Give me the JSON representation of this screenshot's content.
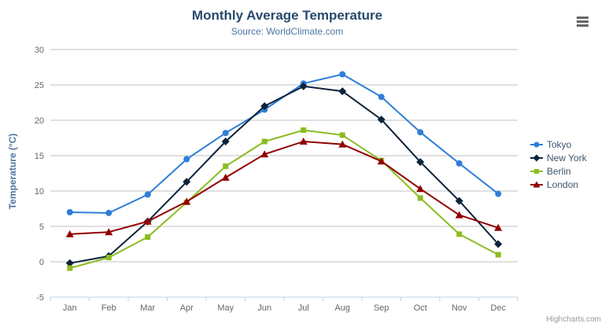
{
  "chart": {
    "credits": "Highcharts.com",
    "menu_icon": "hamburger-icon"
  },
  "chart_data": {
    "type": "line",
    "title": "Monthly Average Temperature",
    "subtitle": "Source: WorldClimate.com",
    "categories": [
      "Jan",
      "Feb",
      "Mar",
      "Apr",
      "May",
      "Jun",
      "Jul",
      "Aug",
      "Sep",
      "Oct",
      "Nov",
      "Dec"
    ],
    "series": [
      {
        "name": "Tokyo",
        "color": "#2f7ed8",
        "marker": "circle",
        "values": [
          7.0,
          6.9,
          9.5,
          14.5,
          18.2,
          21.5,
          25.2,
          26.5,
          23.3,
          18.3,
          13.9,
          9.6
        ]
      },
      {
        "name": "New York",
        "color": "#0d233a",
        "marker": "diamond",
        "values": [
          -0.2,
          0.8,
          5.7,
          11.3,
          17.0,
          22.0,
          24.8,
          24.1,
          20.1,
          14.1,
          8.6,
          2.5
        ]
      },
      {
        "name": "Berlin",
        "color": "#8bbc21",
        "marker": "square",
        "values": [
          -0.9,
          0.6,
          3.5,
          8.4,
          13.5,
          17.0,
          18.6,
          17.9,
          14.3,
          9.0,
          3.9,
          1.0
        ]
      },
      {
        "name": "London",
        "color": "#910000",
        "marker": "triangle",
        "values": [
          3.9,
          4.2,
          5.7,
          8.5,
          11.9,
          15.2,
          17.0,
          16.6,
          14.2,
          10.3,
          6.6,
          4.8
        ]
      }
    ],
    "xlabel": "",
    "ylabel": "Temperature (°C)",
    "ylim": [
      -5,
      30
    ],
    "ytick_interval": 5,
    "grid": true,
    "legend_position": "right"
  },
  "colors": {
    "grid": "#C0C0C0",
    "axis_line": "#C0D0E0",
    "tick_label": "#666666",
    "title": "#274b6d",
    "subtitle": "#4d759e",
    "axis_title": "#4d759e",
    "legend_text": "#3E576F",
    "credits": "#999999"
  }
}
